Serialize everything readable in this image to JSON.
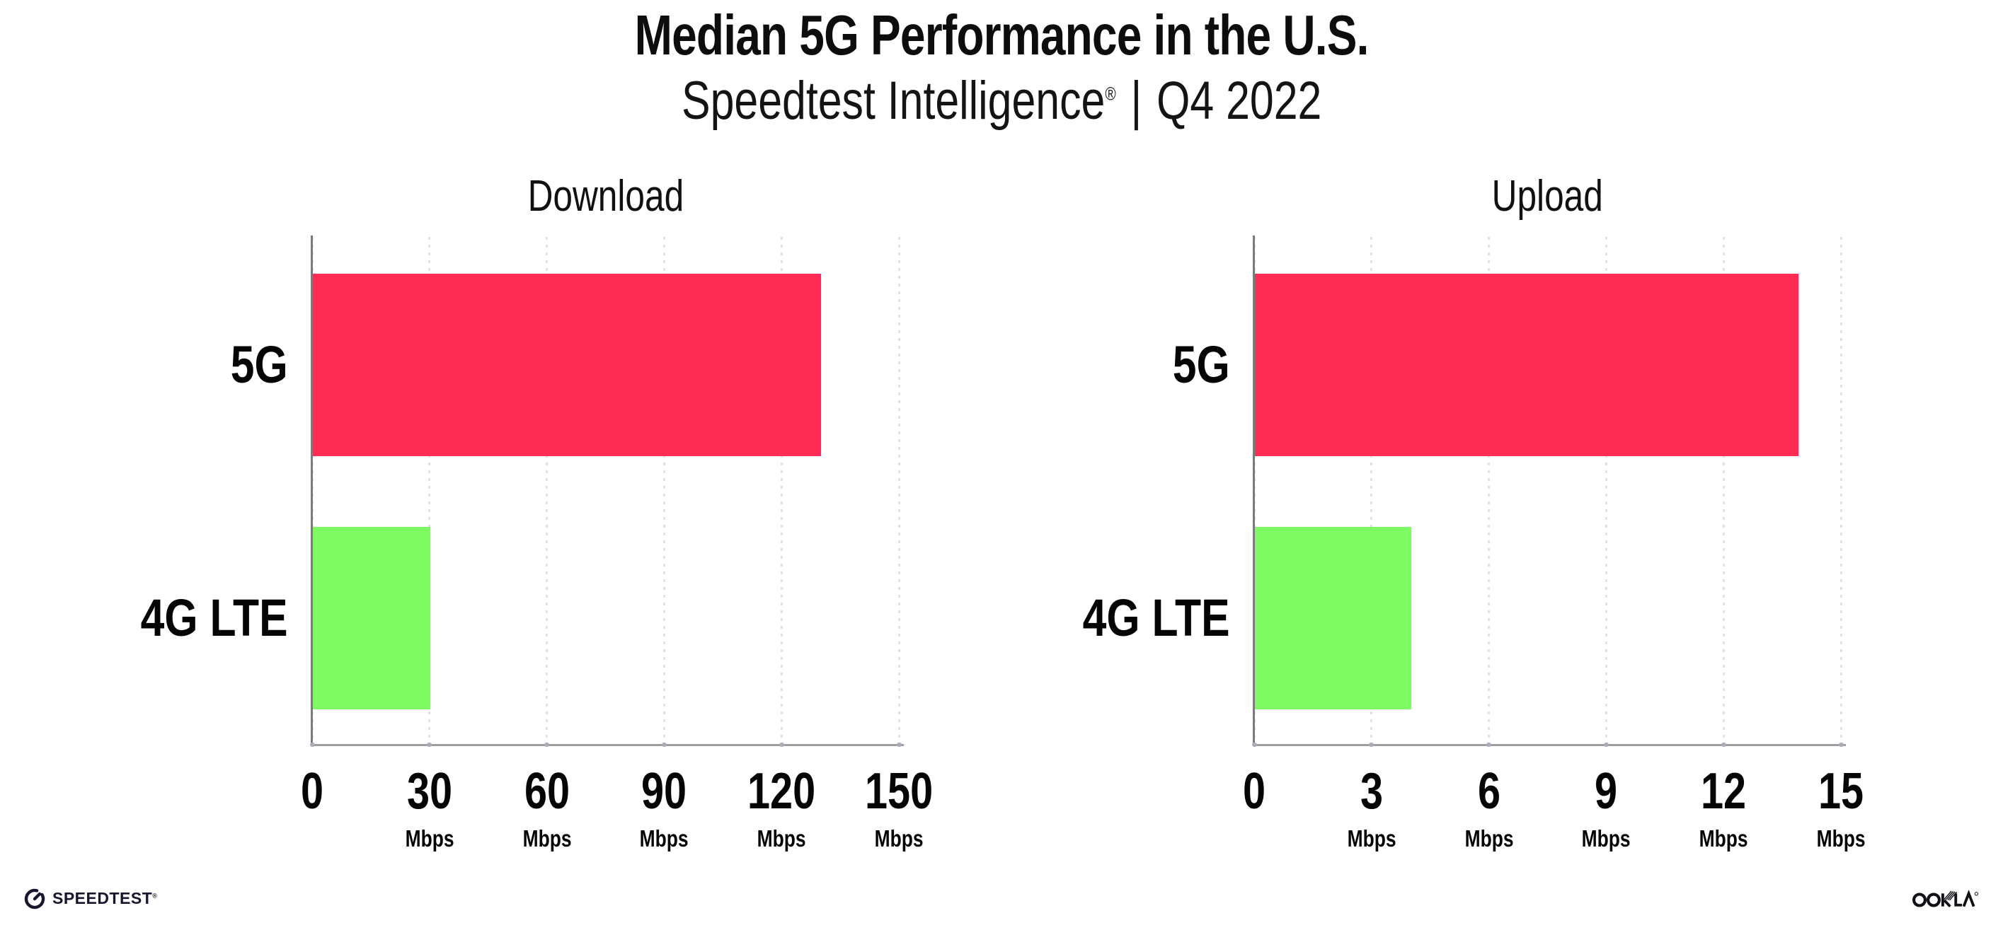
{
  "header": {
    "title": "Median 5G Performance in the U.S.",
    "subtitle_product": "Speedtest Intelligence",
    "subtitle_reg": "®",
    "subtitle_separator": "|",
    "subtitle_period": "Q4 2022"
  },
  "chart_data": [
    {
      "type": "bar",
      "orientation": "horizontal",
      "title": "Download",
      "categories": [
        "5G",
        "4G LTE"
      ],
      "values": [
        130,
        30
      ],
      "unit": "Mbps",
      "xlim": [
        0,
        150
      ],
      "xticks": [
        0,
        30,
        60,
        90,
        120,
        150
      ],
      "grid": "dotted-vertical",
      "legend": "none",
      "bar_colors": [
        "#FF2D55",
        "#7EFB62"
      ]
    },
    {
      "type": "bar",
      "orientation": "horizontal",
      "title": "Upload",
      "categories": [
        "5G",
        "4G LTE"
      ],
      "values": [
        13.9,
        4
      ],
      "unit": "Mbps",
      "xlim": [
        0,
        15
      ],
      "xticks": [
        0,
        3,
        6,
        9,
        12,
        15
      ],
      "grid": "dotted-vertical",
      "legend": "none",
      "bar_colors": [
        "#FF2D55",
        "#7EFB62"
      ]
    }
  ],
  "footer": {
    "speedtest_logo_text": "SPEEDTEST",
    "speedtest_reg": "®",
    "ookla_logo_text": "OOKLA"
  },
  "colors": {
    "bar_5g": "#FF2D55",
    "bar_4g_lte": "#7EFB62",
    "gridline": "#E1E1EC",
    "axis_y": "#7B7B7B",
    "axis_x": "#9E9E9E",
    "text": "#0D0D0D"
  }
}
